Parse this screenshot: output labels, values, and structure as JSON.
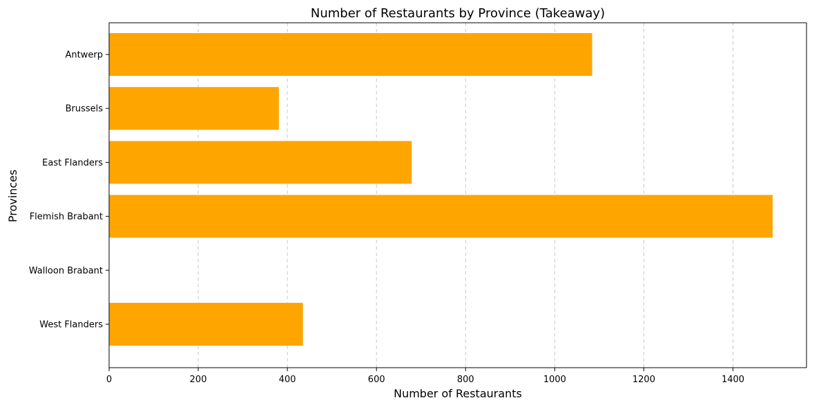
{
  "chart_data": {
    "type": "bar",
    "orientation": "horizontal",
    "title": "Number of Restaurants by Province (Takeaway)",
    "xlabel": "Number of Restaurants",
    "ylabel": "Provinces",
    "categories": [
      "Antwerp",
      "Brussels",
      "East Flanders",
      "Flemish Brabant",
      "Walloon Brabant",
      "West Flanders"
    ],
    "values": [
      1084,
      381,
      679,
      1489,
      0,
      435
    ],
    "xlim": [
      0,
      1565
    ],
    "xticks": [
      0,
      200,
      400,
      600,
      800,
      1000,
      1200,
      1400
    ],
    "grid": "x, dashed",
    "bar_color": "#FFA500",
    "grid_color": "#c8c8c8",
    "axis_color": "#000000"
  }
}
